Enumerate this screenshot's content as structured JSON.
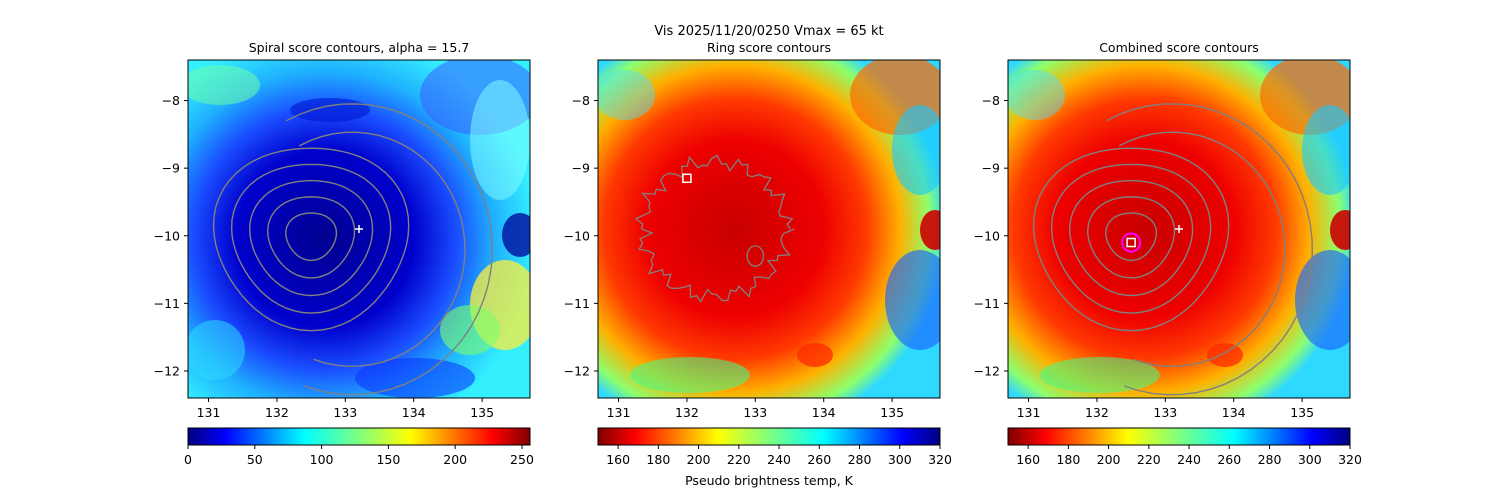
{
  "figure": {
    "suptitle_line1": "Vis  2025/11/20/0250    Vmax = 65 kt",
    "suptitle_line2": "Ring score contours"
  },
  "chart_data": [
    {
      "type": "heatmap",
      "title": "Spiral score contours, alpha = 15.7",
      "xlabel": "",
      "ylabel": "",
      "xlim": [
        130.7,
        135.7
      ],
      "ylim": [
        -12.4,
        -7.4
      ],
      "x_ticks": [
        131,
        132,
        133,
        134,
        135
      ],
      "y_ticks": [
        -8,
        -9,
        -10,
        -11,
        -12
      ],
      "colormap": "jet",
      "colormap_reversed": false,
      "colorbar": {
        "min": 0,
        "max": 256,
        "ticks": [
          0,
          50,
          100,
          150,
          200,
          250
        ],
        "label": ""
      },
      "markers": [
        {
          "kind": "plus",
          "x": 133.2,
          "y": -9.9,
          "color": "#ffffff"
        }
      ],
      "contour_center": [
        132.5,
        -10.0
      ],
      "contour_color": "#808080"
    },
    {
      "type": "heatmap",
      "title": "",
      "xlabel": "",
      "ylabel": "",
      "xlim": [
        130.7,
        135.7
      ],
      "ylim": [
        -12.4,
        -7.4
      ],
      "x_ticks": [
        131,
        132,
        133,
        134,
        135
      ],
      "y_ticks": [
        -8,
        -9,
        -10,
        -11,
        -12
      ],
      "colormap": "jet",
      "colormap_reversed": true,
      "colorbar": {
        "min": 150,
        "max": 320,
        "ticks": [
          160,
          180,
          200,
          220,
          240,
          260,
          280,
          300,
          320
        ],
        "label": "Pseudo brightness temp, K"
      },
      "markers": [
        {
          "kind": "square",
          "x": 132.0,
          "y": -9.15,
          "color": "#ffffff"
        }
      ],
      "contour_center": [
        132.4,
        -9.9
      ],
      "contour_color": "#808080"
    },
    {
      "type": "heatmap",
      "title": "Combined score contours",
      "xlabel": "",
      "ylabel": "",
      "xlim": [
        130.7,
        135.7
      ],
      "ylim": [
        -12.4,
        -7.4
      ],
      "x_ticks": [
        131,
        132,
        133,
        134,
        135
      ],
      "y_ticks": [
        -8,
        -9,
        -10,
        -11,
        -12
      ],
      "colormap": "jet",
      "colormap_reversed": true,
      "colorbar": {
        "min": 150,
        "max": 320,
        "ticks": [
          160,
          180,
          200,
          220,
          240,
          260,
          280,
          300,
          320
        ],
        "label": ""
      },
      "markers": [
        {
          "kind": "plus",
          "x": 133.2,
          "y": -9.9,
          "color": "#ffffff"
        },
        {
          "kind": "circle",
          "x": 132.5,
          "y": -10.1,
          "color": "#ff00ff"
        },
        {
          "kind": "square",
          "x": 132.5,
          "y": -10.1,
          "color": "#ffffff"
        }
      ],
      "contour_center": [
        132.5,
        -10.0
      ],
      "contour_color": "#808080"
    }
  ]
}
